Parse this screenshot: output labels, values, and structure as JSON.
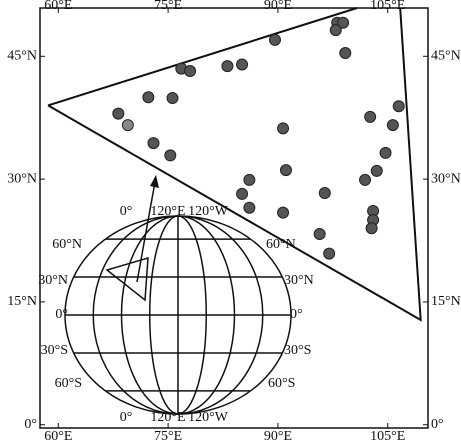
{
  "chart_data": {
    "type": "scatter",
    "x": [
      98.1,
      98.9,
      97.9,
      89.6,
      99.2,
      76.8,
      78.0,
      83.1,
      85.1,
      68.2,
      72.3,
      75.6,
      106.5,
      69.5,
      102.6,
      90.7,
      105.7,
      73.0,
      75.3,
      104.7,
      91.1,
      103.5,
      101.9,
      86.1,
      85.1,
      96.4,
      86.1,
      90.7,
      103.0,
      103.0,
      102.8,
      95.7,
      97.0
    ],
    "y": [
      49.1,
      49.1,
      48.2,
      47.0,
      45.4,
      43.5,
      43.2,
      43.8,
      44.0,
      38.0,
      40.0,
      39.9,
      38.9,
      36.6,
      37.6,
      36.2,
      36.6,
      34.4,
      32.9,
      33.2,
      31.1,
      31.0,
      29.9,
      29.9,
      28.2,
      28.3,
      26.5,
      25.9,
      26.1,
      25.0,
      24.0,
      23.3,
      20.9
    ],
    "colors": [
      "#555",
      "#555",
      "#555",
      "#555",
      "#555",
      "#555",
      "#555",
      "#555",
      "#555",
      "#555",
      "#555",
      "#555",
      "#555",
      "#888",
      "#555",
      "#555",
      "#555",
      "#555",
      "#555",
      "#555",
      "#555",
      "#555",
      "#555",
      "#555",
      "#555",
      "#555",
      "#555",
      "#555",
      "#555",
      "#555",
      "#555",
      "#555",
      "#555"
    ],
    "lines": [
      {
        "x": [
          58.6,
          100.8
        ],
        "y": [
          39.0,
          50.9
        ]
      },
      {
        "x": [
          106.7,
          109.5,
          58.6
        ],
        "y": [
          50.9,
          12.8,
          39.0
        ]
      }
    ],
    "xlim": [
      57.5,
      110.5
    ],
    "ylim": [
      -0.4,
      50.9
    ],
    "xticks": [
      {
        "value": 60,
        "label": "60°E"
      },
      {
        "value": 75,
        "label": "75°E"
      },
      {
        "value": 90,
        "label": "90°E"
      },
      {
        "value": 105,
        "label": "105°E"
      }
    ],
    "yticks": [
      {
        "value": 0,
        "label": "0°"
      },
      {
        "value": 15,
        "label": "15°N"
      },
      {
        "value": 30,
        "label": "30°N"
      },
      {
        "value": 45,
        "label": "45°N"
      }
    ]
  },
  "inset": {
    "top": [
      "0°",
      "120°E",
      "120°W"
    ],
    "bottom": [
      "0°",
      "120°E",
      "120°W"
    ],
    "left": [
      "60°N",
      "30°N",
      "0°",
      "30°S",
      "60°S"
    ],
    "right": [
      "60°N",
      "30°N",
      "0°",
      "30°S",
      "60°S"
    ]
  }
}
